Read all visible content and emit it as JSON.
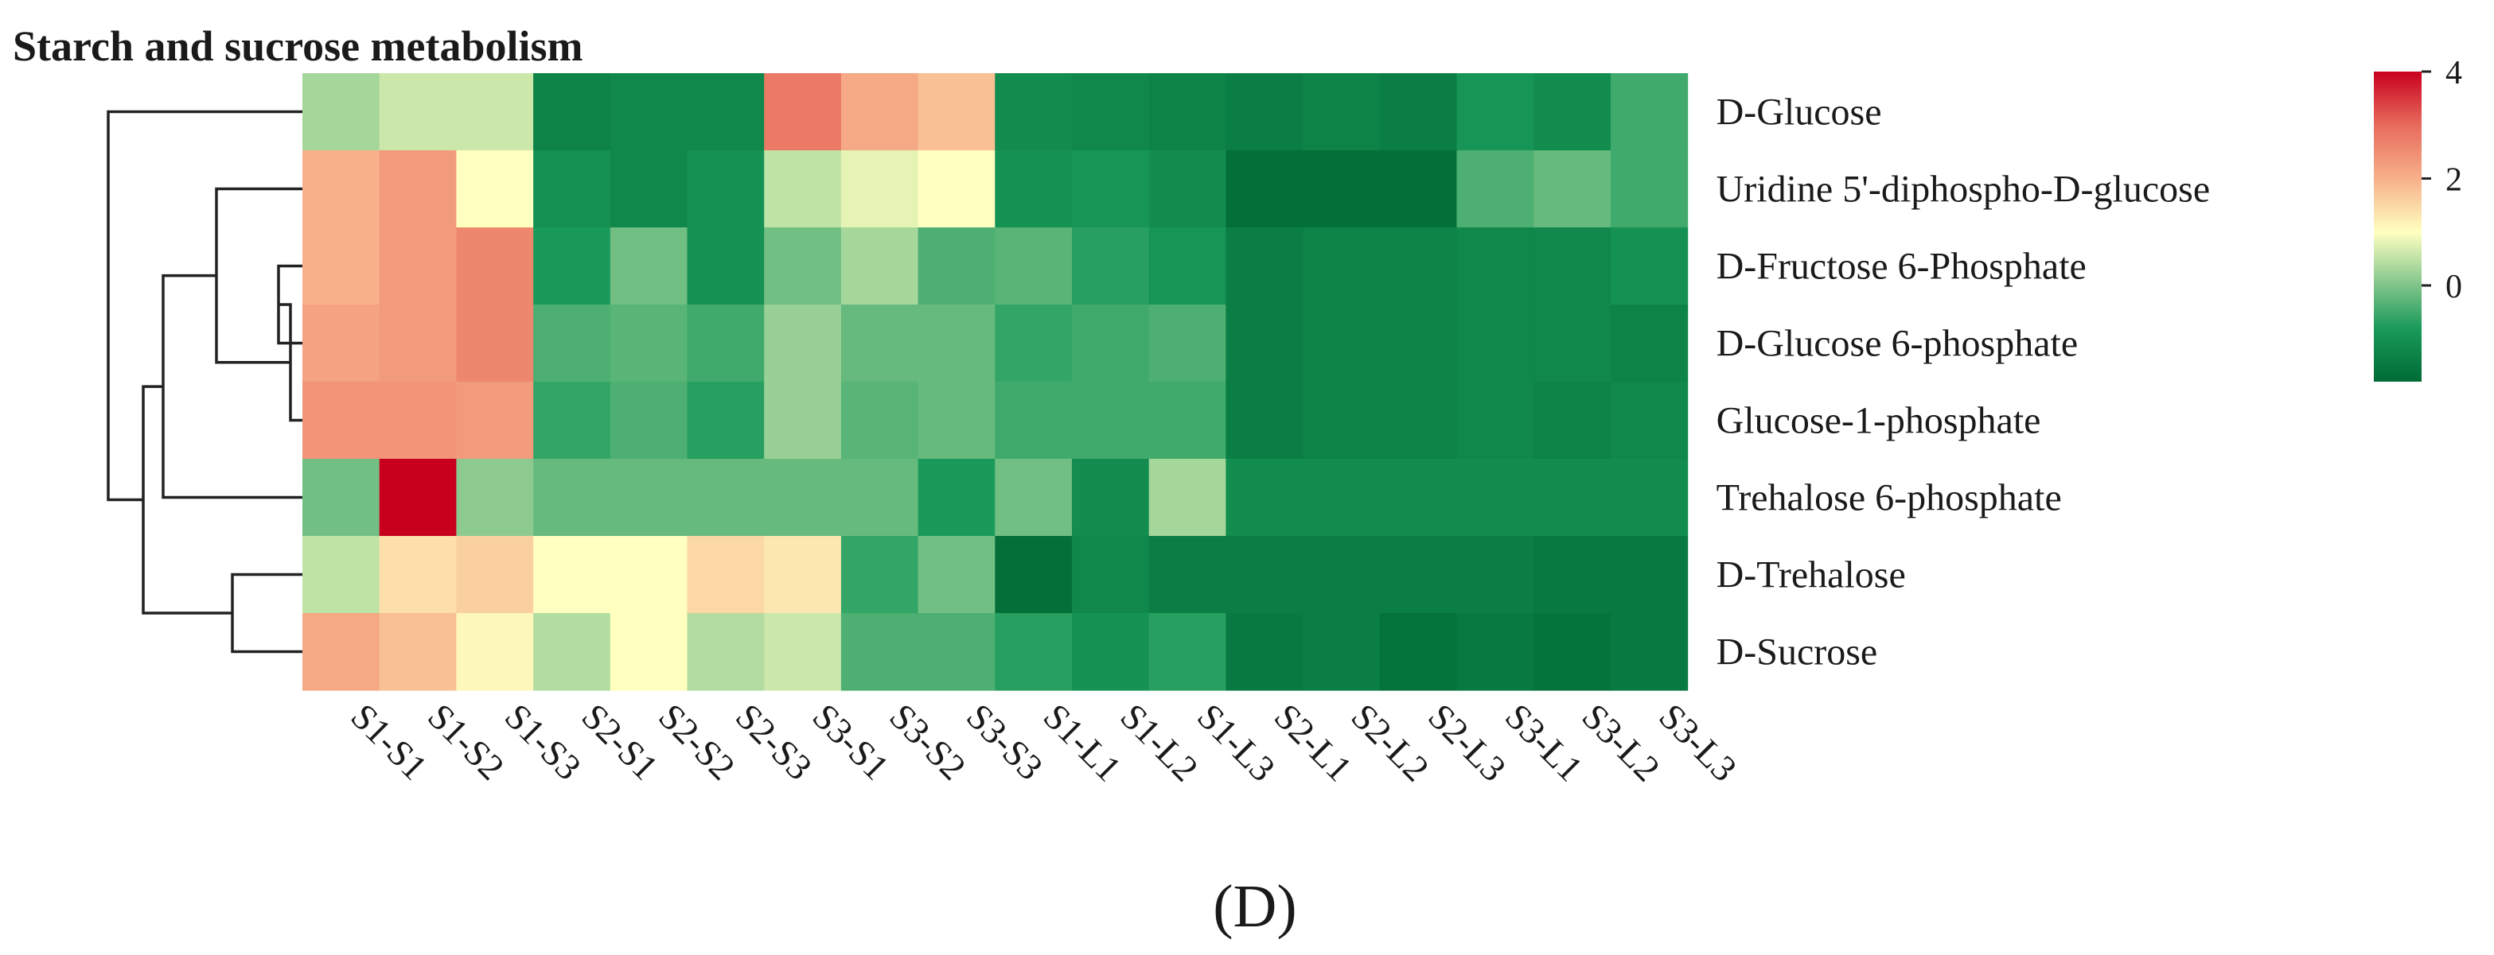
{
  "panel_label": "(D)",
  "chart_data": {
    "type": "heatmap",
    "title": "Starch and sucrose metabolism",
    "columns": [
      "S1-S1",
      "S1-S2",
      "S1-S3",
      "S2-S1",
      "S2-S2",
      "S2-S3",
      "S3-S1",
      "S3-S2",
      "S3-S3",
      "S1-L1",
      "S1-L2",
      "S1-L3",
      "S2-L1",
      "S2-L2",
      "S2-L3",
      "S3-L1",
      "S3-L2",
      "S3-L3"
    ],
    "rows": [
      "D-Glucose",
      "Uridine 5'-diphospho-D-glucose",
      "D-Fructose 6-Phosphate",
      "D-Glucose 6-phosphate",
      "Glucose-1-phosphate",
      "Trehalose 6-phosphate",
      "D-Trehalose",
      "D-Sucrose"
    ],
    "values": [
      [
        0.3,
        0.6,
        0.6,
        -1.3,
        -1.2,
        -1.2,
        2.8,
        2.1,
        1.8,
        -1.1,
        -1.2,
        -1.3,
        -1.4,
        -1.3,
        -1.4,
        -0.9,
        -1.1,
        -0.5
      ],
      [
        2.0,
        2.3,
        1.0,
        -1.0,
        -1.2,
        -1.0,
        0.5,
        0.8,
        1.0,
        -1.0,
        -0.9,
        -1.1,
        -1.7,
        -1.7,
        -1.7,
        -0.4,
        -0.2,
        -0.5
      ],
      [
        2.0,
        2.3,
        2.6,
        -0.8,
        -0.1,
        -1.0,
        -0.1,
        0.3,
        -0.4,
        -0.3,
        -0.7,
        -0.9,
        -1.4,
        -1.3,
        -1.3,
        -1.2,
        -1.2,
        -1.0
      ],
      [
        2.2,
        2.3,
        2.6,
        -0.4,
        -0.3,
        -0.5,
        0.2,
        -0.2,
        -0.2,
        -0.6,
        -0.5,
        -0.4,
        -1.4,
        -1.3,
        -1.3,
        -1.2,
        -1.2,
        -1.3
      ],
      [
        2.4,
        2.4,
        2.3,
        -0.6,
        -0.4,
        -0.7,
        0.2,
        -0.3,
        -0.2,
        -0.5,
        -0.5,
        -0.5,
        -1.4,
        -1.3,
        -1.3,
        -1.2,
        -1.3,
        -1.2
      ],
      [
        -0.1,
        4.0,
        0.1,
        -0.2,
        -0.2,
        -0.2,
        -0.2,
        -0.2,
        -0.8,
        -0.1,
        -1.1,
        0.3,
        -1.1,
        -1.1,
        -1.1,
        -1.1,
        -1.1,
        -1.1
      ],
      [
        0.5,
        1.4,
        1.6,
        1.0,
        1.0,
        1.5,
        1.3,
        -0.6,
        -0.1,
        -1.7,
        -1.2,
        -1.4,
        -1.4,
        -1.4,
        -1.4,
        -1.4,
        -1.5,
        -1.5
      ],
      [
        2.1,
        1.8,
        1.1,
        0.4,
        1.0,
        0.4,
        0.6,
        -0.4,
        -0.4,
        -0.7,
        -1.0,
        -0.7,
        -1.5,
        -1.4,
        -1.6,
        -1.5,
        -1.6,
        -1.5
      ]
    ],
    "color_scale": {
      "min": -1.8,
      "max": 4,
      "ticks": [
        0,
        2,
        4
      ],
      "colors": [
        "#006b35",
        "#1a9a5a",
        "#7fc48a",
        "#ffffc0",
        "#f7b08a",
        "#e76b5c",
        "#c8001e"
      ],
      "stops": [
        -1.8,
        -0.8,
        0,
        1,
        2,
        3,
        4
      ]
    },
    "legend_position": "top-right",
    "row_dendrogram": "left"
  }
}
